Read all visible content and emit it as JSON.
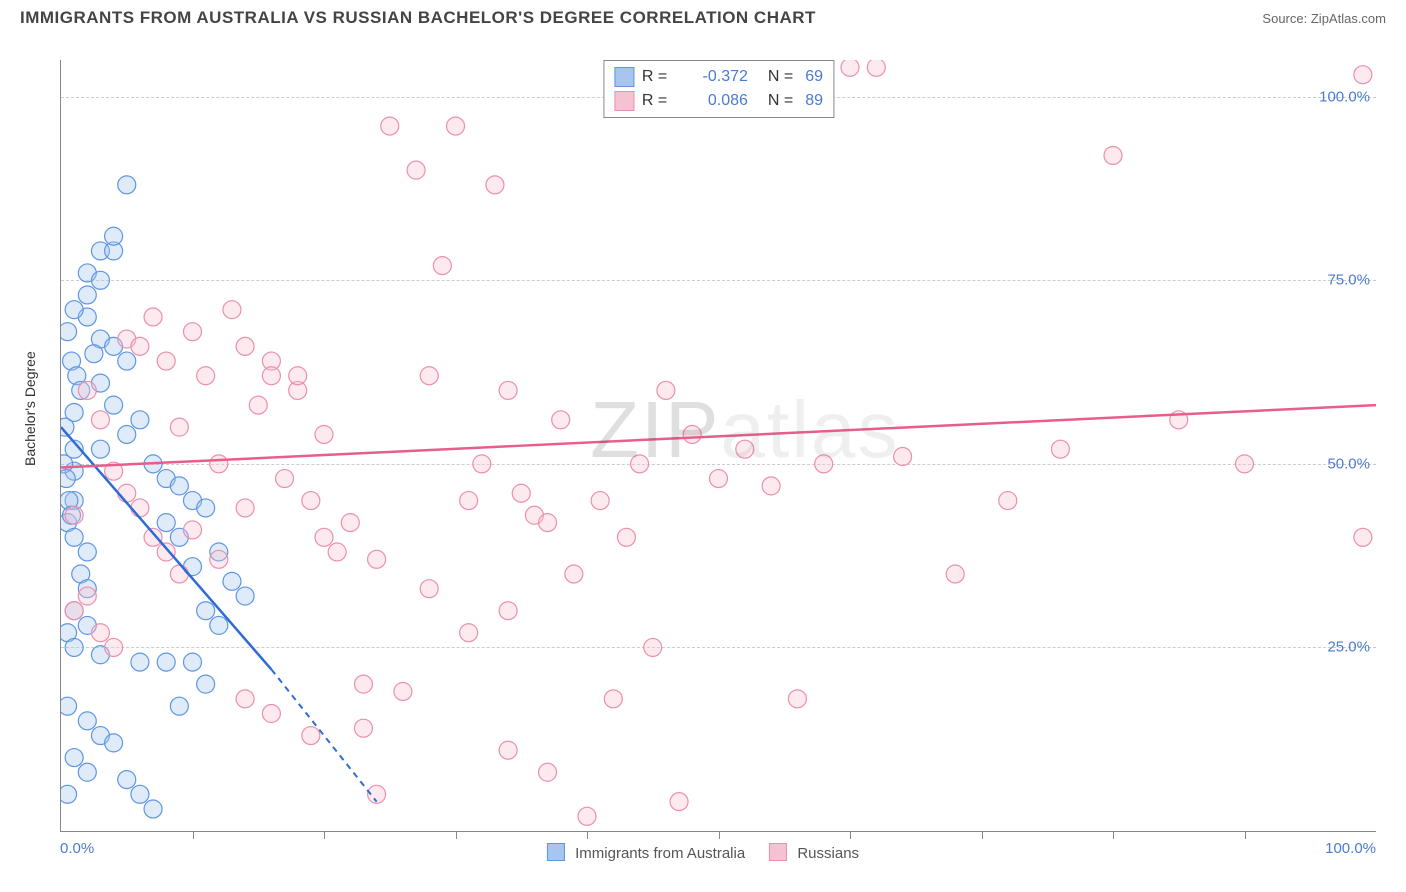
{
  "title": "IMMIGRANTS FROM AUSTRALIA VS RUSSIAN BACHELOR'S DEGREE CORRELATION CHART",
  "source_label": "Source:",
  "source_name": "ZipAtlas.com",
  "watermark": "ZIPatlas",
  "y_axis_title": "Bachelor's Degree",
  "chart": {
    "type": "scatter",
    "xlim": [
      0,
      100
    ],
    "ylim": [
      0,
      105
    ],
    "x_tick_labels": [
      "0.0%",
      "100.0%"
    ],
    "y_ticks": [
      25,
      50,
      75,
      100
    ],
    "y_tick_labels": [
      "25.0%",
      "50.0%",
      "75.0%",
      "100.0%"
    ],
    "x_minor_ticks": [
      10,
      20,
      30,
      40,
      50,
      60,
      70,
      80,
      90
    ],
    "background_color": "#ffffff",
    "grid_color": "#cccccc",
    "axis_color": "#888888",
    "label_color": "#4a7bd0",
    "marker_radius": 9,
    "marker_opacity": 0.35,
    "series": [
      {
        "name": "Immigrants from Australia",
        "color_line": "#2e6bd6",
        "color_fill": "#a7c5ee",
        "color_stroke": "#5d96e3",
        "R": "-0.372",
        "N": "69",
        "trend": {
          "x1": 0,
          "y1": 55,
          "x_solid_end": 16,
          "y_solid_end": 22,
          "x2": 24,
          "y2": 4
        },
        "points": [
          [
            1,
            57
          ],
          [
            1,
            52
          ],
          [
            1,
            49
          ],
          [
            1,
            45
          ],
          [
            0.5,
            42
          ],
          [
            1,
            40
          ],
          [
            2,
            38
          ],
          [
            1.5,
            35
          ],
          [
            2,
            33
          ],
          [
            1,
            30
          ],
          [
            2,
            28
          ],
          [
            0.5,
            27
          ],
          [
            1,
            25
          ],
          [
            3,
            24
          ],
          [
            0.5,
            17
          ],
          [
            2,
            15
          ],
          [
            3,
            13
          ],
          [
            4,
            12
          ],
          [
            1,
            10
          ],
          [
            2,
            8
          ],
          [
            5,
            7
          ],
          [
            0.5,
            5
          ],
          [
            6,
            5
          ],
          [
            7,
            3
          ],
          [
            3,
            79
          ],
          [
            4,
            79
          ],
          [
            2,
            76
          ],
          [
            2,
            70
          ],
          [
            3,
            67
          ],
          [
            4,
            66
          ],
          [
            2.5,
            65
          ],
          [
            5,
            64
          ],
          [
            3,
            61
          ],
          [
            4,
            58
          ],
          [
            6,
            56
          ],
          [
            5,
            54
          ],
          [
            3,
            52
          ],
          [
            7,
            50
          ],
          [
            8,
            48
          ],
          [
            9,
            47
          ],
          [
            10,
            45
          ],
          [
            11,
            44
          ],
          [
            8,
            42
          ],
          [
            9,
            40
          ],
          [
            12,
            38
          ],
          [
            10,
            36
          ],
          [
            13,
            34
          ],
          [
            14,
            32
          ],
          [
            11,
            30
          ],
          [
            12,
            28
          ],
          [
            5,
            88
          ],
          [
            4,
            81
          ],
          [
            3,
            75
          ],
          [
            2,
            73
          ],
          [
            1,
            71
          ],
          [
            0.5,
            68
          ],
          [
            0.8,
            64
          ],
          [
            1.2,
            62
          ],
          [
            1.5,
            60
          ],
          [
            0.3,
            55
          ],
          [
            0.2,
            50
          ],
          [
            0.4,
            48
          ],
          [
            0.6,
            45
          ],
          [
            0.8,
            43
          ],
          [
            6,
            23
          ],
          [
            8,
            23
          ],
          [
            9,
            17
          ],
          [
            10,
            23
          ],
          [
            11,
            20
          ]
        ]
      },
      {
        "name": "Russians",
        "color_line": "#e85d8a",
        "color_fill": "#f5c2d2",
        "color_stroke": "#ec8fac",
        "R": "0.086",
        "N": "89",
        "trend": {
          "x1": 0,
          "y1": 49.5,
          "x_solid_end": 100,
          "y_solid_end": 58,
          "x2": 100,
          "y2": 58
        },
        "points": [
          [
            1,
            43
          ],
          [
            2,
            60
          ],
          [
            3,
            56
          ],
          [
            4,
            49
          ],
          [
            5,
            67
          ],
          [
            6,
            66
          ],
          [
            7,
            70
          ],
          [
            8,
            64
          ],
          [
            9,
            55
          ],
          [
            10,
            68
          ],
          [
            11,
            62
          ],
          [
            12,
            50
          ],
          [
            13,
            71
          ],
          [
            14,
            66
          ],
          [
            15,
            58
          ],
          [
            16,
            64
          ],
          [
            17,
            48
          ],
          [
            18,
            60
          ],
          [
            19,
            45
          ],
          [
            20,
            54
          ],
          [
            5,
            46
          ],
          [
            6,
            44
          ],
          [
            7,
            40
          ],
          [
            8,
            38
          ],
          [
            9,
            35
          ],
          [
            10,
            41
          ],
          [
            12,
            37
          ],
          [
            14,
            44
          ],
          [
            16,
            62
          ],
          [
            18,
            62
          ],
          [
            20,
            40
          ],
          [
            21,
            38
          ],
          [
            22,
            42
          ],
          [
            23,
            20
          ],
          [
            24,
            37
          ],
          [
            25,
            96
          ],
          [
            27,
            90
          ],
          [
            28,
            62
          ],
          [
            29,
            77
          ],
          [
            30,
            96
          ],
          [
            31,
            45
          ],
          [
            32,
            50
          ],
          [
            33,
            88
          ],
          [
            34,
            60
          ],
          [
            35,
            46
          ],
          [
            36,
            43
          ],
          [
            37,
            42
          ],
          [
            38,
            56
          ],
          [
            39,
            35
          ],
          [
            40,
            2
          ],
          [
            41,
            45
          ],
          [
            42,
            18
          ],
          [
            43,
            40
          ],
          [
            44,
            50
          ],
          [
            45,
            25
          ],
          [
            46,
            60
          ],
          [
            47,
            4
          ],
          [
            48,
            54
          ],
          [
            50,
            48
          ],
          [
            52,
            52
          ],
          [
            54,
            47
          ],
          [
            56,
            18
          ],
          [
            58,
            50
          ],
          [
            60,
            104
          ],
          [
            62,
            104
          ],
          [
            64,
            51
          ],
          [
            68,
            35
          ],
          [
            72,
            45
          ],
          [
            76,
            52
          ],
          [
            80,
            92
          ],
          [
            85,
            56
          ],
          [
            90,
            50
          ],
          [
            99,
            103
          ],
          [
            99,
            40
          ],
          [
            1,
            30
          ],
          [
            2,
            32
          ],
          [
            3,
            27
          ],
          [
            4,
            25
          ],
          [
            14,
            18
          ],
          [
            16,
            16
          ],
          [
            19,
            13
          ],
          [
            23,
            14
          ],
          [
            26,
            19
          ],
          [
            24,
            5
          ],
          [
            28,
            33
          ],
          [
            31,
            27
          ],
          [
            34,
            11
          ],
          [
            37,
            8
          ],
          [
            34,
            30
          ]
        ]
      }
    ]
  },
  "legend_bottom": [
    {
      "swatch_fill": "#a7c5ee",
      "swatch_border": "#5d96e3",
      "label": "Immigrants from Australia"
    },
    {
      "swatch_fill": "#f5c2d2",
      "swatch_border": "#ec8fac",
      "label": "Russians"
    }
  ]
}
